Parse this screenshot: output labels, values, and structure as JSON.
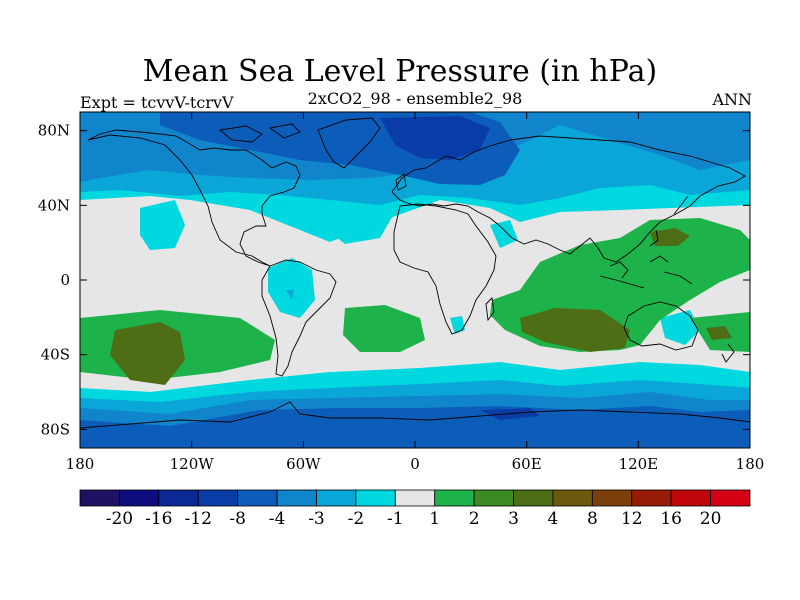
{
  "title": "Mean Sea Level Pressure (in hPa)",
  "left_string": "Expt = tcvvV-tcrvV",
  "center_string": "2xCO2_98 - ensemble2_98",
  "right_string": "ANN",
  "lat_ticks": [
    {
      "value": 80,
      "label": "80N"
    },
    {
      "value": 40,
      "label": "40N"
    },
    {
      "value": 0,
      "label": "0"
    },
    {
      "value": -40,
      "label": "40S"
    },
    {
      "value": -80,
      "label": "80S"
    }
  ],
  "lon_ticks": [
    {
      "value": -180,
      "label": "180"
    },
    {
      "value": -120,
      "label": "120W"
    },
    {
      "value": -60,
      "label": "60W"
    },
    {
      "value": 0,
      "label": "0"
    },
    {
      "value": 60,
      "label": "60E"
    },
    {
      "value": 120,
      "label": "120E"
    },
    {
      "value": 180,
      "label": "180"
    }
  ],
  "colorbar": {
    "colors": [
      "#1d1264",
      "#0d0d80",
      "#0b2a96",
      "#0a3ca8",
      "#0c5cba",
      "#1185cc",
      "#0aa6d8",
      "#00d8e0",
      "#e6e6e6",
      "#1db24a",
      "#3b8a22",
      "#4d6e14",
      "#6b5a0e",
      "#7a3f0a",
      "#961c08",
      "#c0060a",
      "#d40014"
    ],
    "labels": [
      "-20",
      "-16",
      "-12",
      "-8",
      "-4",
      "-3",
      "-2",
      "-1",
      "1",
      "2",
      "3",
      "4",
      "8",
      "12",
      "16",
      "20"
    ]
  },
  "colors": {
    "neutral": "#e6e6e6",
    "neg1": "#00d8e0",
    "neg2": "#0aa6d8",
    "neg3": "#1185cc",
    "neg4": "#0c5cba",
    "neg8": "#0a3ca8",
    "pos1": "#1db24a",
    "pos3": "#4d6e14"
  }
}
